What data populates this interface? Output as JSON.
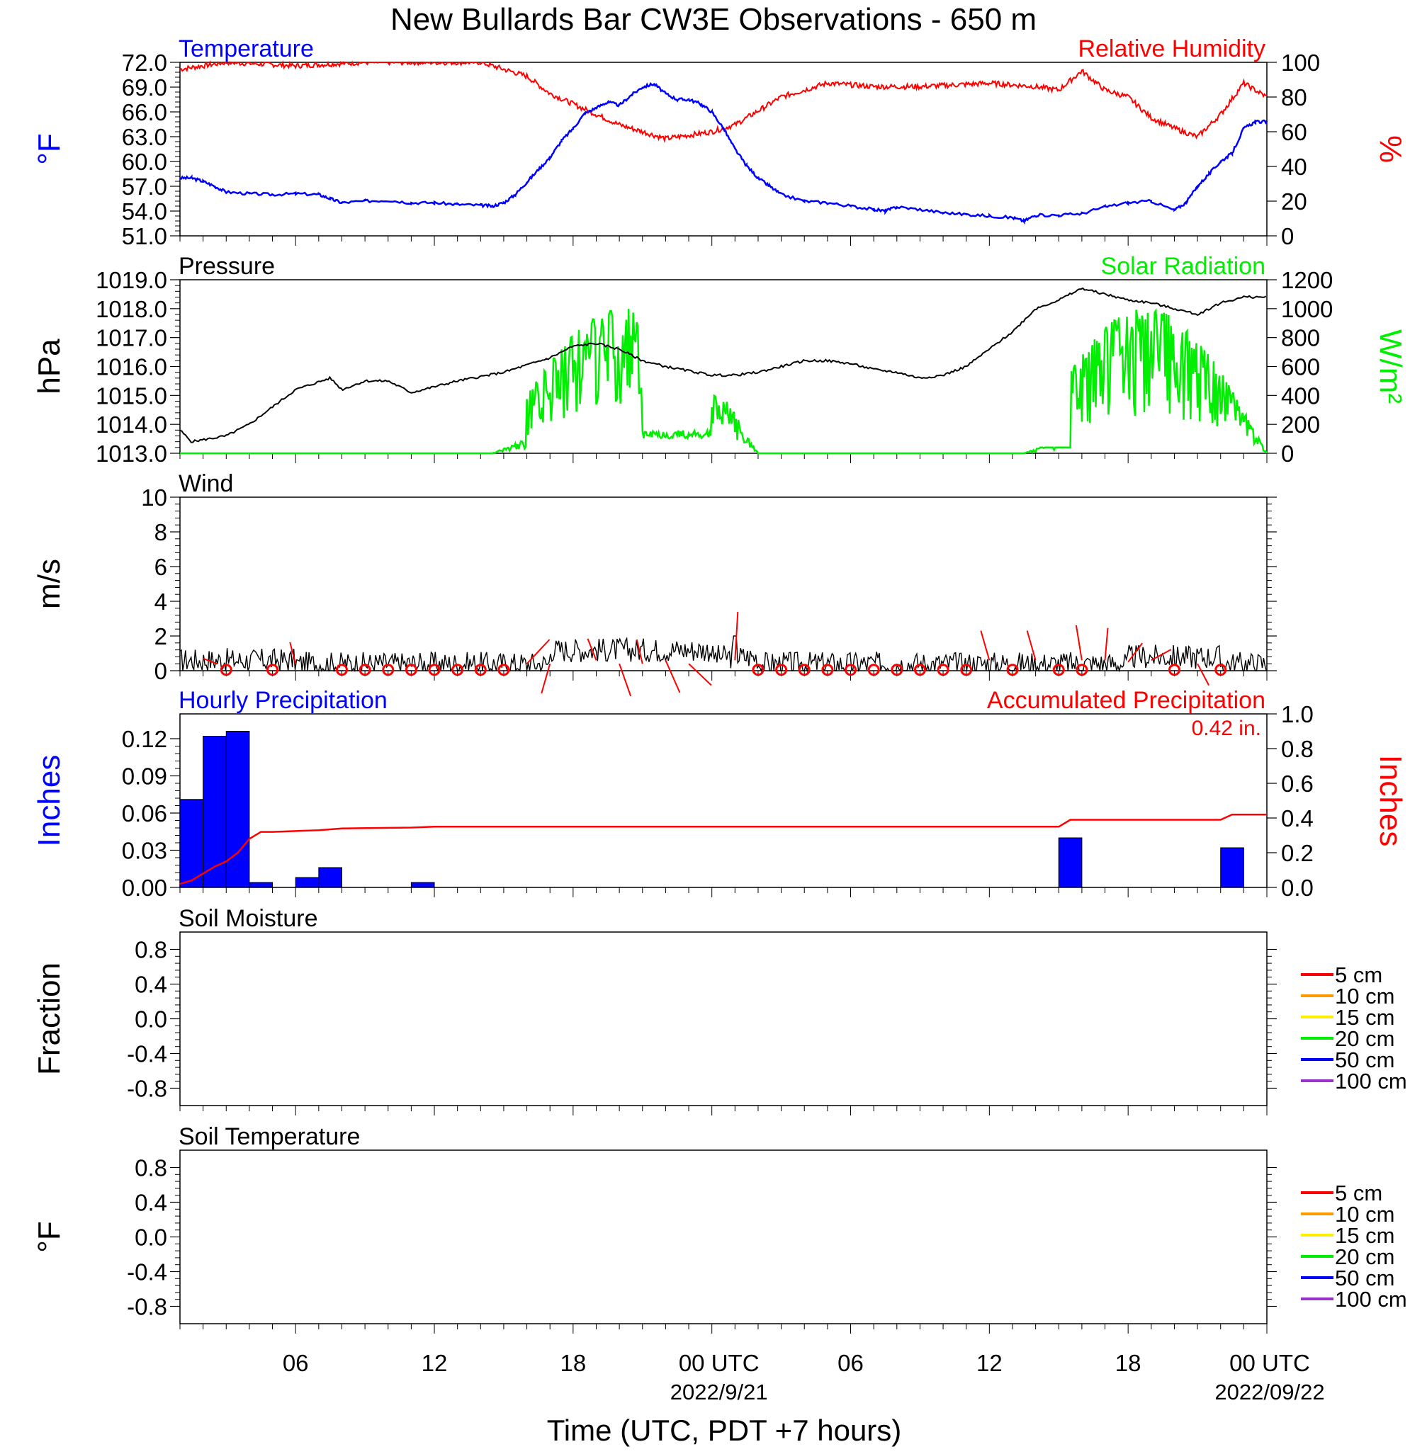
{
  "page": {
    "title": "New Bullards Bar CW3E Observations - 650 m",
    "x_axis_label": "Time (UTC, PDT +7 hours)",
    "x_ticks": [
      {
        "label": "06",
        "sub": ""
      },
      {
        "label": "12",
        "sub": ""
      },
      {
        "label": "18",
        "sub": ""
      },
      {
        "label": "00 UTC",
        "sub": "2022/9/21"
      },
      {
        "label": "06",
        "sub": ""
      },
      {
        "label": "12",
        "sub": ""
      },
      {
        "label": "18",
        "sub": ""
      },
      {
        "label": "00 UTC",
        "sub": "2022/09/22"
      }
    ]
  },
  "chart_data": [
    {
      "type": "line",
      "id": "temp-humidity",
      "left_title": "Temperature",
      "right_title": "Relative Humidity",
      "left_ylabel": "°F",
      "right_ylabel": "%",
      "left_ylim": [
        51,
        72
      ],
      "left_ticks": [
        "51.0",
        "54.0",
        "57.0",
        "60.0",
        "63.0",
        "66.0",
        "69.0",
        "72.0"
      ],
      "right_ylim": [
        0,
        100
      ],
      "right_ticks": [
        "0",
        "20",
        "40",
        "60",
        "80",
        "100"
      ],
      "xlim": [
        1,
        48
      ],
      "colors": {
        "temperature": "#0000ff",
        "humidity": "#ff0000"
      },
      "series": [
        {
          "name": "Temperature",
          "axis": "left",
          "color": "#0000ff",
          "x": [
            1,
            1.5,
            2,
            2.5,
            3,
            4,
            5,
            6,
            7,
            7.5,
            8,
            9,
            10,
            11,
            12,
            13,
            14,
            14.5,
            15,
            15.5,
            16,
            16.5,
            17,
            17.5,
            18,
            18.5,
            19,
            19.5,
            20,
            20.5,
            21,
            21.5,
            22,
            22.5,
            23,
            23.5,
            24,
            24.5,
            25,
            25.5,
            26,
            26.5,
            27,
            28,
            29,
            30,
            31,
            31.5,
            32,
            33,
            34,
            35,
            36,
            37,
            37.5,
            38,
            39,
            40,
            41,
            42,
            43,
            44,
            44.5,
            45,
            45.5,
            46,
            46.5,
            47,
            47.5,
            48
          ],
          "y": [
            58,
            58,
            57.6,
            57,
            56.3,
            56.1,
            56,
            56.1,
            56,
            55.5,
            55,
            55.2,
            55.3,
            55,
            55,
            54.8,
            54.7,
            54.6,
            55,
            56,
            57.5,
            59,
            60.5,
            62.5,
            64,
            65.8,
            66.5,
            67.2,
            66.8,
            68,
            69,
            69.4,
            68.2,
            67.5,
            67.5,
            67,
            66,
            64,
            61.5,
            59.5,
            58,
            57,
            56,
            55.2,
            55,
            54.6,
            54.2,
            54,
            54.5,
            54.2,
            53.8,
            53.6,
            53.4,
            53.2,
            52.8,
            53.5,
            53.5,
            53.7,
            54.5,
            55,
            55.2,
            54.1,
            55,
            57,
            58.5,
            60,
            61,
            64,
            64.8,
            64.8
          ]
        }
      ]
    },
    {
      "type": "line",
      "id": "pressure-solar",
      "left_title": "Pressure",
      "right_title": "Solar Radiation",
      "left_ylabel": "hPa",
      "right_ylabel": "W/m²",
      "left_ylim": [
        1013,
        1019
      ],
      "left_ticks": [
        "1013.0",
        "1014.0",
        "1015.0",
        "1016.0",
        "1017.0",
        "1018.0",
        "1019.0"
      ],
      "right_ylim": [
        0,
        1200
      ],
      "right_ticks": [
        "0",
        "200",
        "400",
        "600",
        "800",
        "1000",
        "1200"
      ],
      "xlim": [
        1,
        48
      ]
    },
    {
      "type": "line",
      "id": "wind",
      "left_title": "Wind",
      "left_ylabel": "m/s",
      "left_ylim": [
        0,
        10
      ],
      "left_ticks": [
        "0",
        "2",
        "4",
        "6",
        "8",
        "10"
      ],
      "xlim": [
        1,
        48
      ]
    },
    {
      "type": "bar",
      "id": "precipitation",
      "left_title": "Hourly Precipitation",
      "right_title": "Accumulated Precipitation",
      "annotation": "0.42 in.",
      "left_ylabel": "Inches",
      "right_ylabel": "Inches",
      "left_ylim": [
        0,
        0.14
      ],
      "left_ticks": [
        "0.00",
        "0.03",
        "0.06",
        "0.09",
        "0.12"
      ],
      "right_ylim": [
        0,
        1.0
      ],
      "right_ticks": [
        "0.0",
        "0.2",
        "0.4",
        "0.6",
        "0.8",
        "1.0"
      ],
      "xlim": [
        1,
        48
      ],
      "colors": {
        "hourly": "#0000ff",
        "accumulated": "#ff0000"
      },
      "bars": {
        "x": [
          1,
          2,
          3,
          4,
          6,
          7,
          11,
          39,
          46
        ],
        "values": [
          0.071,
          0.122,
          0.126,
          0.004,
          0.008,
          0.016,
          0.004,
          0.04,
          0.032
        ]
      },
      "accumulated": {
        "x": [
          1,
          1.5,
          2,
          2.5,
          3,
          3.5,
          4,
          4.5,
          5,
          6,
          7,
          8,
          11,
          12,
          39,
          39.5,
          46,
          46.5,
          48
        ],
        "y": [
          0.02,
          0.04,
          0.08,
          0.12,
          0.15,
          0.2,
          0.28,
          0.32,
          0.32,
          0.325,
          0.33,
          0.34,
          0.345,
          0.35,
          0.35,
          0.39,
          0.39,
          0.42,
          0.42
        ]
      }
    },
    {
      "type": "line",
      "id": "soil-moisture",
      "left_title": "Soil Moisture",
      "left_ylabel": "Fraction",
      "left_ylim": [
        -1,
        1
      ],
      "left_ticks": [
        "-0.8",
        "-0.4",
        "0.0",
        "0.4",
        "0.8"
      ],
      "xlim": [
        1,
        48
      ],
      "legend": [
        {
          "label": "5 cm",
          "color": "#ff0000"
        },
        {
          "label": "10 cm",
          "color": "#ff9900"
        },
        {
          "label": "15 cm",
          "color": "#ffee00"
        },
        {
          "label": "20 cm",
          "color": "#00ee00"
        },
        {
          "label": "50 cm",
          "color": "#0000ff"
        },
        {
          "label": "100 cm",
          "color": "#9933cc"
        }
      ]
    },
    {
      "type": "line",
      "id": "soil-temperature",
      "left_title": "Soil Temperature",
      "left_ylabel": "°F",
      "left_ylim": [
        -1,
        1
      ],
      "left_ticks": [
        "-0.8",
        "-0.4",
        "0.0",
        "0.4",
        "0.8"
      ],
      "xlim": [
        1,
        48
      ],
      "legend": [
        {
          "label": "5 cm",
          "color": "#ff0000"
        },
        {
          "label": "10 cm",
          "color": "#ff9900"
        },
        {
          "label": "15 cm",
          "color": "#ffee00"
        },
        {
          "label": "20 cm",
          "color": "#00ee00"
        },
        {
          "label": "50 cm",
          "color": "#0000ff"
        },
        {
          "label": "100 cm",
          "color": "#9933cc"
        }
      ]
    }
  ]
}
